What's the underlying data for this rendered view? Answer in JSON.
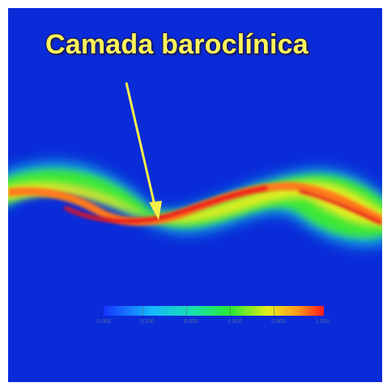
{
  "title": "Camada baroclínica",
  "colorbar": {
    "ticks": [
      "0.000",
      "0.200",
      "0.400",
      "0.600",
      "0.800",
      "1.000"
    ]
  },
  "colors": {
    "background": "#0a2bd8",
    "title": "#fff45a",
    "arrow": "#f6f04a",
    "layer_core": "#e81e14",
    "layer_edge": "#2ae82e"
  }
}
